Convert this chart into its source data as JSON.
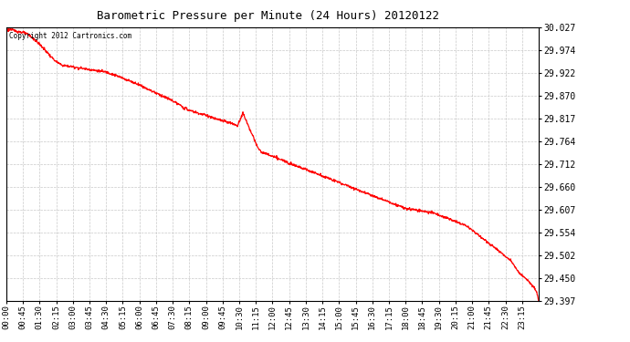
{
  "title": "Barometric Pressure per Minute (24 Hours) 20120122",
  "copyright_text": "Copyright 2012 Cartronics.com",
  "line_color": "#ff0000",
  "background_color": "#ffffff",
  "grid_color": "#bbbbbb",
  "ylim": [
    29.397,
    30.027
  ],
  "yticks": [
    30.027,
    29.974,
    29.922,
    29.87,
    29.817,
    29.764,
    29.712,
    29.66,
    29.607,
    29.554,
    29.502,
    29.45,
    29.397
  ],
  "xtick_labels": [
    "00:00",
    "00:45",
    "01:30",
    "02:15",
    "03:00",
    "03:45",
    "04:30",
    "05:15",
    "06:00",
    "06:45",
    "07:30",
    "08:15",
    "09:00",
    "09:45",
    "10:30",
    "11:15",
    "12:00",
    "12:45",
    "13:30",
    "14:15",
    "15:00",
    "15:45",
    "16:30",
    "17:15",
    "18:00",
    "18:45",
    "19:30",
    "20:15",
    "21:00",
    "21:45",
    "22:30",
    "23:15"
  ],
  "pressure_keypoints": [
    [
      0,
      30.02
    ],
    [
      10,
      30.022
    ],
    [
      20,
      30.02
    ],
    [
      30,
      30.018
    ],
    [
      45,
      30.015
    ],
    [
      60,
      30.01
    ],
    [
      75,
      30.0
    ],
    [
      90,
      29.988
    ],
    [
      105,
      29.975
    ],
    [
      120,
      29.96
    ],
    [
      135,
      29.948
    ],
    [
      150,
      29.94
    ],
    [
      165,
      29.938
    ],
    [
      180,
      29.936
    ],
    [
      195,
      29.934
    ],
    [
      210,
      29.932
    ],
    [
      225,
      29.93
    ],
    [
      240,
      29.928
    ],
    [
      255,
      29.926
    ],
    [
      270,
      29.924
    ],
    [
      285,
      29.92
    ],
    [
      300,
      29.915
    ],
    [
      315,
      29.91
    ],
    [
      330,
      29.905
    ],
    [
      345,
      29.9
    ],
    [
      360,
      29.895
    ],
    [
      375,
      29.888
    ],
    [
      390,
      29.882
    ],
    [
      405,
      29.876
    ],
    [
      420,
      29.87
    ],
    [
      435,
      29.864
    ],
    [
      450,
      29.858
    ],
    [
      465,
      29.85
    ],
    [
      480,
      29.842
    ],
    [
      495,
      29.836
    ],
    [
      510,
      29.832
    ],
    [
      525,
      29.828
    ],
    [
      540,
      29.825
    ],
    [
      555,
      29.82
    ],
    [
      570,
      29.815
    ],
    [
      585,
      29.812
    ],
    [
      600,
      29.808
    ],
    [
      615,
      29.804
    ],
    [
      625,
      29.8
    ],
    [
      635,
      29.82
    ],
    [
      640,
      29.83
    ],
    [
      645,
      29.82
    ],
    [
      650,
      29.81
    ],
    [
      655,
      29.8
    ],
    [
      660,
      29.79
    ],
    [
      665,
      29.78
    ],
    [
      670,
      29.77
    ],
    [
      675,
      29.76
    ],
    [
      680,
      29.75
    ],
    [
      690,
      29.74
    ],
    [
      705,
      29.735
    ],
    [
      720,
      29.73
    ],
    [
      735,
      29.725
    ],
    [
      750,
      29.72
    ],
    [
      765,
      29.715
    ],
    [
      780,
      29.71
    ],
    [
      795,
      29.705
    ],
    [
      810,
      29.7
    ],
    [
      825,
      29.695
    ],
    [
      840,
      29.69
    ],
    [
      855,
      29.685
    ],
    [
      870,
      29.68
    ],
    [
      885,
      29.675
    ],
    [
      900,
      29.67
    ],
    [
      915,
      29.665
    ],
    [
      930,
      29.66
    ],
    [
      945,
      29.655
    ],
    [
      960,
      29.65
    ],
    [
      975,
      29.645
    ],
    [
      990,
      29.64
    ],
    [
      1005,
      29.635
    ],
    [
      1020,
      29.63
    ],
    [
      1035,
      29.625
    ],
    [
      1050,
      29.62
    ],
    [
      1065,
      29.615
    ],
    [
      1080,
      29.61
    ],
    [
      1095,
      29.608
    ],
    [
      1110,
      29.606
    ],
    [
      1125,
      29.604
    ],
    [
      1140,
      29.602
    ],
    [
      1155,
      29.6
    ],
    [
      1170,
      29.595
    ],
    [
      1185,
      29.59
    ],
    [
      1200,
      29.585
    ],
    [
      1215,
      29.58
    ],
    [
      1230,
      29.575
    ],
    [
      1245,
      29.57
    ],
    [
      1260,
      29.56
    ],
    [
      1275,
      29.55
    ],
    [
      1290,
      29.54
    ],
    [
      1305,
      29.53
    ],
    [
      1320,
      29.52
    ],
    [
      1335,
      29.51
    ],
    [
      1350,
      29.5
    ],
    [
      1365,
      29.49
    ],
    [
      1380,
      29.47
    ],
    [
      1395,
      29.455
    ],
    [
      1410,
      29.445
    ],
    [
      1420,
      29.435
    ],
    [
      1430,
      29.425
    ],
    [
      1435,
      29.415
    ],
    [
      1438,
      29.405
    ],
    [
      1440,
      29.397
    ]
  ]
}
